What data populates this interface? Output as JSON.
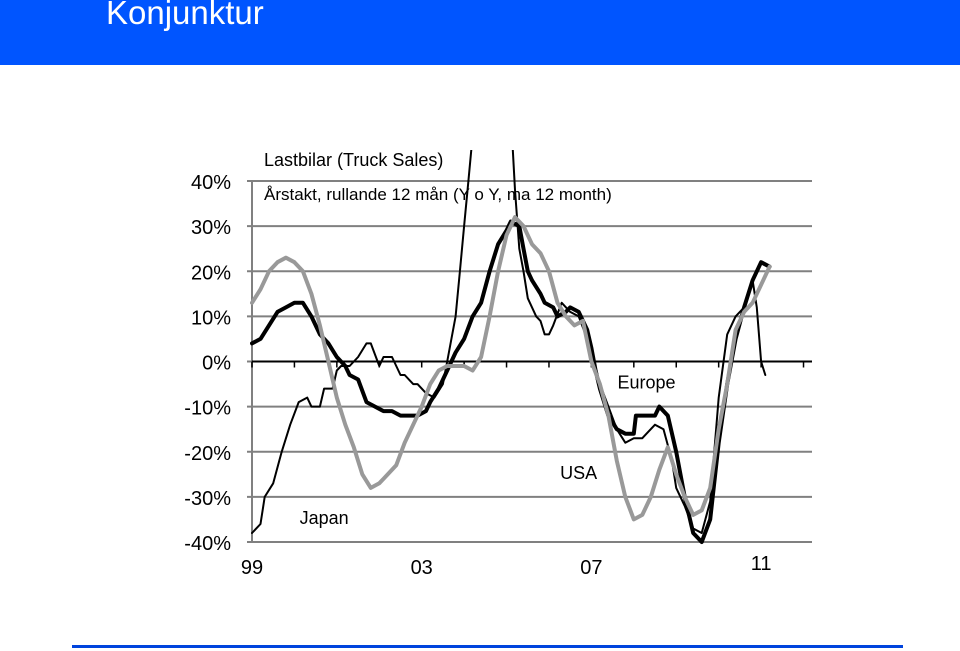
{
  "page": {
    "title": "Konjunktur",
    "header_color": "#0055ff",
    "footer_rule_color": "#0044dd"
  },
  "chart_data": {
    "type": "line",
    "title": "Lastbilar (Truck Sales)",
    "subtitle": "Årstakt, rullande 12 mån (Y o Y, ma 12 month)",
    "xlabel": "",
    "ylabel": "",
    "ylim": [
      -40,
      40
    ],
    "xlim": [
      1999.0,
      2012.2
    ],
    "y_ticks": [
      40,
      30,
      20,
      10,
      0,
      -10,
      -20,
      -30,
      -40
    ],
    "y_tick_labels": [
      "40%",
      "30%",
      "20%",
      "10%",
      "0%",
      "-10%",
      "-20%",
      "-30%",
      "-40%"
    ],
    "x_tick_labels": [
      {
        "label": "99",
        "x": 1999.0
      },
      {
        "label": "03",
        "x": 2003.0
      },
      {
        "label": "07",
        "x": 2007.0
      },
      {
        "label": "11",
        "x": 2011.0
      }
    ],
    "grid": true,
    "legend": "inline labels",
    "annotations": [
      {
        "text": "Europe",
        "x": 2008.3,
        "y": -6
      },
      {
        "text": "USA",
        "x": 2006.7,
        "y": -26
      },
      {
        "text": "Japan",
        "x": 2000.7,
        "y": -36
      }
    ],
    "series": [
      {
        "name": "Japan",
        "color": "#000000",
        "width": 2,
        "points": [
          [
            1999.0,
            -38
          ],
          [
            1999.2,
            -36
          ],
          [
            1999.3,
            -30
          ],
          [
            1999.5,
            -27
          ],
          [
            1999.7,
            -20
          ],
          [
            1999.9,
            -14
          ],
          [
            2000.1,
            -9
          ],
          [
            2000.3,
            -8
          ],
          [
            2000.4,
            -10
          ],
          [
            2000.6,
            -10
          ],
          [
            2000.7,
            -6
          ],
          [
            2000.9,
            -6
          ],
          [
            2001.0,
            -2
          ],
          [
            2001.1,
            -1
          ],
          [
            2001.3,
            -1
          ],
          [
            2001.5,
            1
          ],
          [
            2001.7,
            4
          ],
          [
            2001.8,
            4
          ],
          [
            2002.0,
            -1
          ],
          [
            2002.1,
            1
          ],
          [
            2002.3,
            1
          ],
          [
            2002.5,
            -3
          ],
          [
            2002.6,
            -3
          ],
          [
            2002.8,
            -5
          ],
          [
            2002.9,
            -5
          ],
          [
            2003.1,
            -7
          ],
          [
            2003.3,
            -8
          ],
          [
            2003.5,
            -5
          ],
          [
            2003.6,
            0
          ],
          [
            2003.8,
            10
          ],
          [
            2003.9,
            20
          ],
          [
            2004.0,
            30
          ],
          [
            2004.1,
            40
          ],
          [
            2004.25,
            55
          ]
        ]
      },
      {
        "name": "USA",
        "color": "#000000",
        "width": 2,
        "points": [
          [
            2005.1,
            55
          ],
          [
            2005.2,
            38
          ],
          [
            2005.3,
            25
          ],
          [
            2005.4,
            20
          ],
          [
            2005.5,
            14
          ],
          [
            2005.7,
            10
          ],
          [
            2005.8,
            9
          ],
          [
            2005.9,
            6
          ],
          [
            2006.0,
            6
          ],
          [
            2006.1,
            8
          ],
          [
            2006.3,
            13
          ],
          [
            2006.5,
            11
          ],
          [
            2006.7,
            10
          ],
          [
            2006.9,
            5
          ],
          [
            2007.0,
            1
          ],
          [
            2007.2,
            -5
          ],
          [
            2007.4,
            -10
          ],
          [
            2007.6,
            -15
          ],
          [
            2007.8,
            -18
          ],
          [
            2008.0,
            -17
          ],
          [
            2008.2,
            -17
          ],
          [
            2008.3,
            -16
          ],
          [
            2008.5,
            -14
          ],
          [
            2008.7,
            -15
          ],
          [
            2008.9,
            -22
          ],
          [
            2009.0,
            -28
          ],
          [
            2009.2,
            -32
          ],
          [
            2009.4,
            -37
          ],
          [
            2009.6,
            -38
          ],
          [
            2009.8,
            -31
          ],
          [
            2010.0,
            -8
          ],
          [
            2010.2,
            6
          ],
          [
            2010.4,
            10
          ],
          [
            2010.6,
            12
          ],
          [
            2010.8,
            18
          ],
          [
            2010.9,
            12
          ],
          [
            2011.0,
            0
          ],
          [
            2011.1,
            -3
          ]
        ]
      },
      {
        "name": "Europe",
        "color": "#000000",
        "width": 4,
        "points": [
          [
            1999.0,
            4
          ],
          [
            1999.2,
            5
          ],
          [
            1999.4,
            8
          ],
          [
            1999.6,
            11
          ],
          [
            1999.8,
            12
          ],
          [
            2000.0,
            13
          ],
          [
            2000.2,
            13
          ],
          [
            2000.4,
            10
          ],
          [
            2000.6,
            6
          ],
          [
            2000.8,
            4
          ],
          [
            2001.0,
            1
          ],
          [
            2001.2,
            -1
          ],
          [
            2001.3,
            -3
          ],
          [
            2001.5,
            -4
          ],
          [
            2001.7,
            -9
          ],
          [
            2001.9,
            -10
          ],
          [
            2002.1,
            -11
          ],
          [
            2002.3,
            -11
          ],
          [
            2002.5,
            -12
          ],
          [
            2002.7,
            -12
          ],
          [
            2002.9,
            -12
          ],
          [
            2003.1,
            -11
          ],
          [
            2003.2,
            -9
          ],
          [
            2003.4,
            -6
          ],
          [
            2003.6,
            -2
          ],
          [
            2003.8,
            2
          ],
          [
            2004.0,
            5
          ],
          [
            2004.2,
            10
          ],
          [
            2004.4,
            13
          ],
          [
            2004.6,
            20
          ],
          [
            2004.8,
            26
          ],
          [
            2005.0,
            29
          ],
          [
            2005.1,
            31
          ],
          [
            2005.3,
            30
          ],
          [
            2005.4,
            25
          ],
          [
            2005.5,
            20
          ],
          [
            2005.6,
            18
          ],
          [
            2005.8,
            15
          ],
          [
            2005.9,
            13
          ],
          [
            2006.1,
            12
          ],
          [
            2006.2,
            10
          ],
          [
            2006.4,
            11
          ],
          [
            2006.5,
            12
          ],
          [
            2006.7,
            11
          ],
          [
            2006.9,
            7
          ],
          [
            2007.0,
            3
          ],
          [
            2007.1,
            -2
          ],
          [
            2007.2,
            -6
          ],
          [
            2007.4,
            -12
          ],
          [
            2007.6,
            -15
          ],
          [
            2007.8,
            -16
          ],
          [
            2008.0,
            -16
          ],
          [
            2008.05,
            -12
          ],
          [
            2008.3,
            -12
          ],
          [
            2008.5,
            -12
          ],
          [
            2008.6,
            -10
          ],
          [
            2008.8,
            -12
          ],
          [
            2009.0,
            -20
          ],
          [
            2009.2,
            -30
          ],
          [
            2009.4,
            -38
          ],
          [
            2009.6,
            -40
          ],
          [
            2009.8,
            -35
          ],
          [
            2010.0,
            -18
          ],
          [
            2010.2,
            -5
          ],
          [
            2010.4,
            5
          ],
          [
            2010.6,
            12
          ],
          [
            2010.8,
            18
          ],
          [
            2011.0,
            22
          ],
          [
            2011.2,
            21
          ]
        ]
      },
      {
        "name": "",
        "color": "#999999",
        "width": 4,
        "points": [
          [
            1999.0,
            13
          ],
          [
            1999.2,
            16
          ],
          [
            1999.4,
            20
          ],
          [
            1999.6,
            22
          ],
          [
            1999.8,
            23
          ],
          [
            2000.0,
            22
          ],
          [
            2000.2,
            20
          ],
          [
            2000.4,
            15
          ],
          [
            2000.6,
            8
          ],
          [
            2000.8,
            0
          ],
          [
            2001.0,
            -8
          ],
          [
            2001.2,
            -14
          ],
          [
            2001.4,
            -19
          ],
          [
            2001.6,
            -25
          ],
          [
            2001.8,
            -28
          ],
          [
            2002.0,
            -27
          ],
          [
            2002.2,
            -25
          ],
          [
            2002.4,
            -23
          ],
          [
            2002.6,
            -18
          ],
          [
            2002.8,
            -14
          ],
          [
            2003.0,
            -10
          ],
          [
            2003.2,
            -5
          ],
          [
            2003.4,
            -2
          ],
          [
            2003.6,
            -1
          ],
          [
            2003.8,
            -1
          ],
          [
            2004.0,
            -1
          ],
          [
            2004.2,
            -2
          ],
          [
            2004.4,
            1
          ],
          [
            2004.6,
            10
          ],
          [
            2004.8,
            20
          ],
          [
            2005.0,
            28
          ],
          [
            2005.2,
            32
          ],
          [
            2005.4,
            30
          ],
          [
            2005.6,
            26
          ],
          [
            2005.8,
            24
          ],
          [
            2006.0,
            20
          ],
          [
            2006.2,
            13
          ],
          [
            2006.4,
            10
          ],
          [
            2006.6,
            8
          ],
          [
            2006.8,
            9
          ],
          [
            2007.0,
            0
          ],
          [
            2007.2,
            -5
          ],
          [
            2007.4,
            -12
          ],
          [
            2007.6,
            -22
          ],
          [
            2007.8,
            -30
          ],
          [
            2008.0,
            -35
          ],
          [
            2008.2,
            -34
          ],
          [
            2008.4,
            -30
          ],
          [
            2008.6,
            -24
          ],
          [
            2008.8,
            -19
          ],
          [
            2009.0,
            -25
          ],
          [
            2009.2,
            -30
          ],
          [
            2009.4,
            -34
          ],
          [
            2009.6,
            -33
          ],
          [
            2009.8,
            -28
          ],
          [
            2010.0,
            -15
          ],
          [
            2010.2,
            -5
          ],
          [
            2010.4,
            7
          ],
          [
            2010.6,
            11
          ],
          [
            2010.8,
            13
          ],
          [
            2011.0,
            17
          ],
          [
            2011.2,
            21
          ]
        ]
      }
    ]
  }
}
